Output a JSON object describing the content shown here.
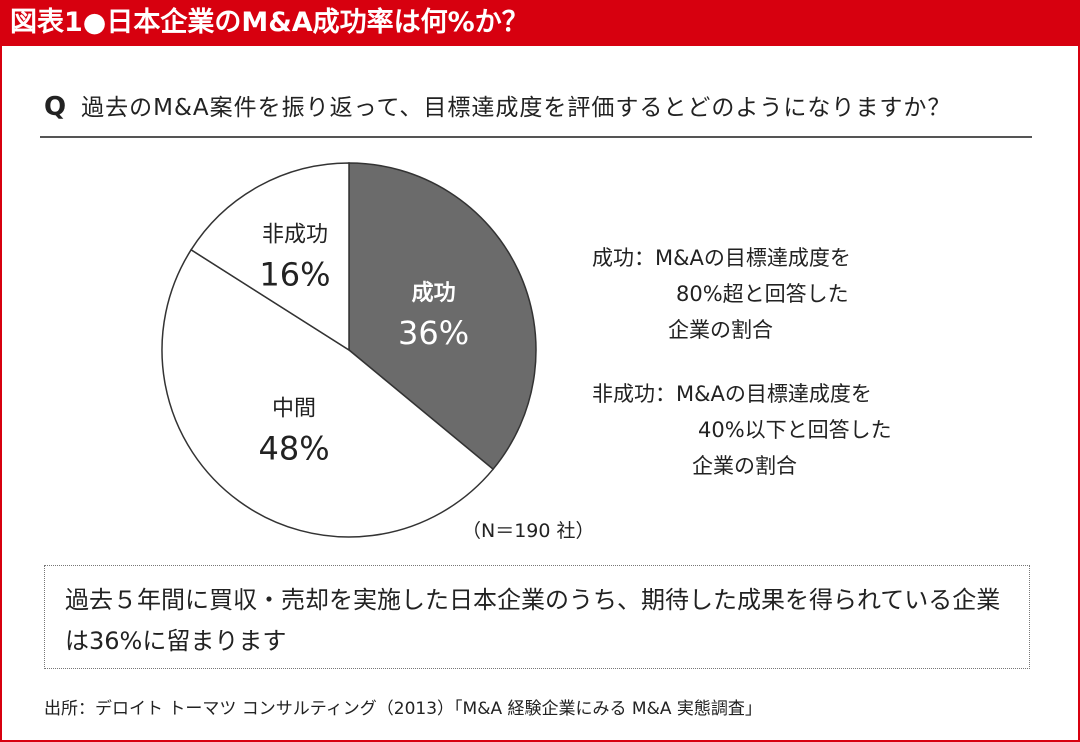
{
  "header": {
    "title": "図表1●日本企業のM&A成功率は何%か？"
  },
  "question": {
    "mark": "Q",
    "text": "過去のM&A案件を振り返って、目標達成度を評価するとどのようになりますか？"
  },
  "chart_data": {
    "type": "pie",
    "start": "top, clockwise",
    "slices": [
      {
        "label": "成功",
        "value": 36,
        "display": "36%",
        "color": "#6b6b6b",
        "text_color": "#ffffff"
      },
      {
        "label": "中間",
        "value": 48,
        "display": "48%",
        "color": "#ffffff",
        "text_color": "#222222"
      },
      {
        "label": "非成功",
        "value": 16,
        "display": "16%",
        "color": "#ffffff",
        "text_color": "#222222"
      }
    ],
    "note": "（N＝190 社）"
  },
  "legend": [
    {
      "term": "成功：",
      "lines": [
        "M&Aの目標達成度を",
        "80%超と回答した",
        "企業の割合"
      ]
    },
    {
      "term": "非成功：",
      "lines": [
        "M&Aの目標達成度を",
        "40%以下と回答した",
        "企業の割合"
      ]
    }
  ],
  "summary": {
    "text": "過去５年間に買収・売却を実施した日本企業のうち、期待した成果を得られている企業は36%に留まります"
  },
  "source": {
    "text": "出所：デロイト トーマツ コンサルティング（2013）「M&A 経験企業にみる M&A 実態調査」"
  },
  "colors": {
    "accent": "#d7000f"
  }
}
